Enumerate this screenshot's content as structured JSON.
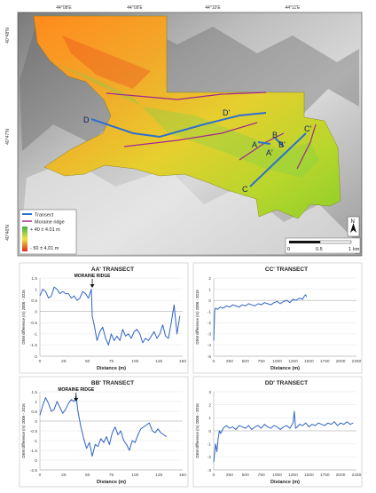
{
  "map": {
    "coord_labels_top": [
      "44°08'E",
      "44°09'E",
      "44°10'E",
      "44°11'E"
    ],
    "coord_labels_left": [
      "40°48'N",
      "40°47'N",
      "40°46'N"
    ],
    "transect_labels": [
      "D",
      "D'",
      "A",
      "A'",
      "B",
      "B'",
      "C",
      "C'"
    ],
    "legend": {
      "items": [
        {
          "label": "Transect",
          "color": "#2f6fd0"
        },
        {
          "label": "Moraine ridge",
          "color": "#a0288c"
        }
      ],
      "ramp_high": "+ 40 ± 4.01 m",
      "ramp_low": "- 50 ± 4.01 m"
    },
    "north_label": "N",
    "scale_labels": [
      "0",
      "0.5",
      "1"
    ],
    "scale_unit": "km"
  },
  "chart_data": [
    {
      "type": "line",
      "title": "AA' TRANSECT",
      "xlabel": "Distance (m)",
      "ylabel": "DEM difference (m) 2006 - 2016",
      "annotation": "MORAINE RIDGE",
      "annotation_x": 55,
      "xlim": [
        0,
        150
      ],
      "ylim": [
        -2,
        1.5
      ],
      "xticks": [
        0,
        25,
        50,
        75,
        100,
        125,
        150
      ],
      "yticks": [
        1.5,
        1,
        0.5,
        0,
        -0.5,
        -1,
        -1.5,
        -2
      ],
      "xtick_labels": [
        "0",
        "25",
        "50",
        "75",
        "100",
        "125",
        "150"
      ],
      "ytick_labels": [
        "1.5",
        "1",
        "0.5",
        "0",
        "-0.5",
        "-1",
        "-1.5",
        "-2"
      ],
      "series": [
        {
          "x": [
            0,
            3,
            6,
            9,
            12,
            15,
            18,
            21,
            24,
            27,
            30,
            33,
            36,
            39,
            42,
            45,
            48,
            51,
            54,
            55,
            57,
            60,
            63,
            66,
            69,
            72,
            75,
            78,
            81,
            84,
            87,
            90,
            93,
            96,
            99,
            102,
            105,
            108,
            111,
            114,
            117,
            120,
            123,
            126,
            129,
            132,
            135,
            138,
            141,
            144,
            147
          ],
          "y": [
            0.7,
            1.0,
            0.9,
            0.6,
            0.7,
            1.1,
            1.0,
            0.8,
            0.9,
            0.8,
            0.8,
            0.6,
            0.7,
            0.5,
            0.6,
            0.9,
            0.8,
            0.6,
            1.0,
            -0.2,
            -0.6,
            -1.3,
            -0.9,
            -0.7,
            -1.2,
            -1.5,
            -1.0,
            -1.3,
            -1.1,
            -1.3,
            -0.8,
            -1.1,
            -1.0,
            -1.2,
            -0.9,
            -0.8,
            -1.0,
            -1.4,
            -1.2,
            -1.3,
            -1.1,
            -0.9,
            -1.2,
            -1.0,
            -0.6,
            -1.1,
            -1.2,
            -0.5,
            0.3,
            -1.0,
            -0.2
          ]
        }
      ]
    },
    {
      "type": "line",
      "title": "CC' TRANSECT",
      "xlabel": "Distance (m)",
      "ylabel": "DEM difference (m) 2006 - 2016",
      "xlim": [
        0,
        2250
      ],
      "ylim": [
        -5,
        2
      ],
      "xticks": [
        0,
        250,
        500,
        750,
        1000,
        1250,
        1500,
        1750,
        2000,
        2250
      ],
      "yticks": [
        2,
        1,
        0,
        -1,
        -2,
        -3,
        -4,
        -5
      ],
      "xtick_labels": [
        "0",
        "250",
        "500",
        "750",
        "1000",
        "1250",
        "1500",
        "1750",
        "2000",
        "2250"
      ],
      "ytick_labels": [
        "2",
        "1",
        "0",
        "-1",
        "-2",
        "-3",
        "-4",
        "-5"
      ],
      "series": [
        {
          "x": [
            0,
            15,
            30,
            60,
            100,
            150,
            200,
            250,
            300,
            350,
            400,
            450,
            500,
            550,
            600,
            650,
            700,
            750,
            800,
            850,
            900,
            950,
            1000,
            1050,
            1100,
            1150,
            1200,
            1250,
            1300,
            1350,
            1400,
            1430,
            1450,
            1460
          ],
          "y": [
            -3.6,
            -0.9,
            -0.7,
            -0.8,
            -0.6,
            -0.7,
            -0.5,
            -0.6,
            -0.4,
            -0.5,
            -0.6,
            -0.4,
            -0.5,
            -0.3,
            -0.4,
            -0.5,
            -0.3,
            -0.4,
            -0.2,
            -0.3,
            -0.4,
            -0.2,
            -0.1,
            -0.3,
            -0.1,
            0.0,
            -0.2,
            0.1,
            0.0,
            0.2,
            0.1,
            0.4,
            0.5,
            0.3
          ]
        }
      ]
    },
    {
      "type": "line",
      "title": "BB' TRANSECT",
      "xlabel": "Distance (m)",
      "ylabel": "DEM difference (m) 2006 - 2016",
      "annotation": "MORAINE RIDGE",
      "annotation_x": 38,
      "xlim": [
        0,
        150
      ],
      "ylim": [
        -2.5,
        1.5
      ],
      "xticks": [
        0,
        25,
        50,
        75,
        100,
        125,
        150
      ],
      "yticks": [
        1.5,
        1,
        0.5,
        0,
        -0.5,
        -1,
        -1.5,
        -2,
        -2.5
      ],
      "xtick_labels": [
        "0",
        "25",
        "50",
        "75",
        "100",
        "125",
        "150"
      ],
      "ytick_labels": [
        "1.5",
        "1",
        "0.5",
        "0",
        "-0.5",
        "-1",
        "-1.5",
        "-2",
        "-2.5"
      ],
      "series": [
        {
          "x": [
            0,
            3,
            6,
            9,
            12,
            15,
            18,
            21,
            24,
            27,
            30,
            33,
            36,
            38,
            40,
            43,
            46,
            49,
            52,
            55,
            58,
            61,
            64,
            67,
            70,
            73,
            76,
            79,
            82,
            85,
            88,
            91,
            94,
            97,
            100,
            103,
            106,
            109,
            112,
            115,
            118,
            121,
            124,
            127,
            130,
            133
          ],
          "y": [
            0.3,
            0.8,
            1.2,
            0.9,
            0.5,
            0.6,
            1.0,
            0.7,
            0.4,
            0.6,
            0.9,
            1.1,
            1.0,
            1.3,
            0.5,
            -0.3,
            -0.9,
            -1.4,
            -1.1,
            -1.8,
            -1.2,
            -1.3,
            -0.9,
            -1.1,
            -0.8,
            -1.2,
            -0.6,
            -0.3,
            -0.7,
            -0.5,
            -1.0,
            -1.2,
            -1.5,
            -1.0,
            -1.1,
            -0.7,
            -0.4,
            -0.3,
            -0.2,
            -0.1,
            -0.5,
            -0.6,
            -0.4,
            -0.6,
            -0.7,
            -0.8
          ]
        }
      ]
    },
    {
      "type": "line",
      "title": "DD' TRANSECT",
      "xlabel": "Distance (m)",
      "ylabel": "DEM difference (m) 2006 - 2016",
      "xlim": [
        0,
        2250
      ],
      "ylim": [
        -3,
        3
      ],
      "xticks": [
        0,
        250,
        500,
        750,
        1000,
        1250,
        1500,
        1750,
        2000,
        2250
      ],
      "yticks": [
        3,
        2,
        1,
        0,
        -1,
        -2,
        -3
      ],
      "xtick_labels": [
        "0",
        "250",
        "500",
        "750",
        "1000",
        "1250",
        "1500",
        "1750",
        "2000",
        "2250"
      ],
      "ytick_labels": [
        "3",
        "2",
        "1",
        "0",
        "-1",
        "-2",
        "-3"
      ],
      "series": [
        {
          "x": [
            0,
            30,
            50,
            70,
            90,
            110,
            150,
            200,
            250,
            300,
            350,
            400,
            450,
            500,
            550,
            600,
            650,
            700,
            750,
            800,
            850,
            900,
            950,
            1000,
            1050,
            1100,
            1150,
            1200,
            1250,
            1270,
            1290,
            1320,
            1350,
            1400,
            1450,
            1500,
            1550,
            1600,
            1650,
            1700,
            1750,
            1800,
            1850,
            1900,
            1950,
            2000,
            2050,
            2100,
            2150,
            2200
          ],
          "y": [
            -2.4,
            -1.0,
            -1.6,
            -0.6,
            0.0,
            -0.2,
            0.2,
            0.4,
            0.2,
            0.3,
            0.1,
            0.4,
            0.3,
            0.2,
            0.4,
            0.1,
            0.3,
            0.4,
            0.2,
            0.5,
            0.3,
            0.2,
            0.4,
            0.3,
            0.1,
            0.3,
            0.4,
            0.2,
            0.6,
            1.5,
            0.2,
            0.3,
            0.5,
            0.4,
            0.6,
            0.3,
            0.5,
            0.4,
            0.6,
            0.5,
            0.4,
            0.6,
            0.5,
            0.7,
            0.4,
            0.6,
            0.5,
            0.7,
            0.5,
            0.6
          ]
        }
      ]
    }
  ]
}
